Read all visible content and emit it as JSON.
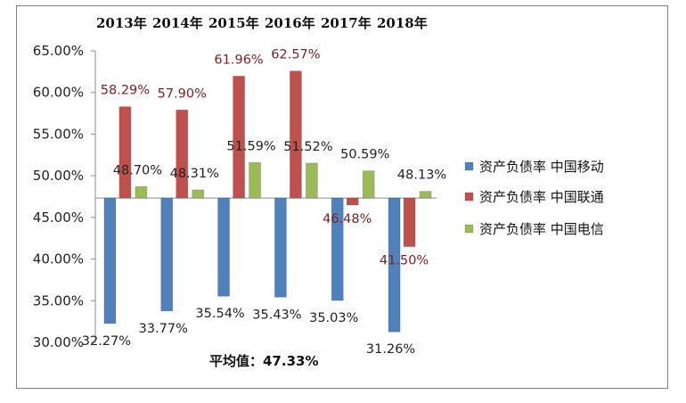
{
  "chart_data": {
    "type": "bar",
    "categories": [
      "2013年",
      "2014年",
      "2015年",
      "2016年",
      "2017年",
      "2018年"
    ],
    "baseline": 47.33,
    "baseline_label": "平均值：47.33%",
    "ylim": [
      30,
      65
    ],
    "yticks": [
      "30.00%",
      "35.00%",
      "40.00%",
      "45.00%",
      "50.00%",
      "55.00%",
      "60.00%",
      "65.00%"
    ],
    "grid": false,
    "legend_position": "right",
    "series": [
      {
        "name": "资产负债率 中国移动",
        "color": "#4f81bd",
        "values": [
          32.27,
          33.77,
          35.54,
          35.43,
          35.03,
          31.26
        ],
        "labels": [
          "32.27%",
          "33.77%",
          "35.54%",
          "35.43%",
          "35.03%",
          "31.26%"
        ]
      },
      {
        "name": "资产负债率 中国联通",
        "color": "#c0504d",
        "values": [
          58.29,
          57.9,
          61.96,
          62.57,
          46.48,
          41.5
        ],
        "labels": [
          "58.29%",
          "57.90%",
          "61.96%",
          "62.57%",
          "46.48%",
          "41.50%"
        ]
      },
      {
        "name": "资产负债率 中国电信",
        "color": "#9bbb59",
        "values": [
          48.7,
          48.31,
          51.59,
          51.52,
          50.59,
          48.13
        ],
        "labels": [
          "48.70%",
          "48.31%",
          "51.59%",
          "51.52%",
          "50.59%",
          "48.13%"
        ]
      }
    ]
  }
}
